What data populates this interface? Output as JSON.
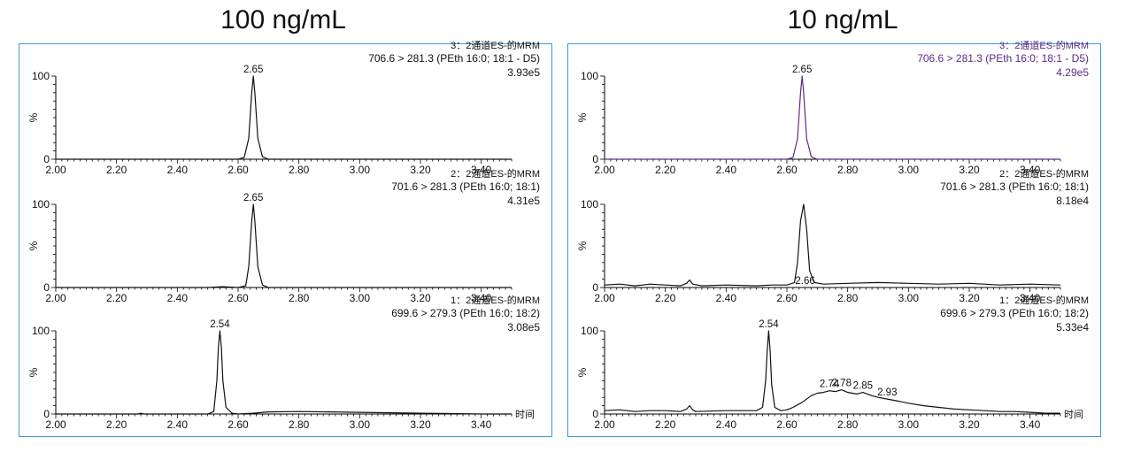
{
  "panels": [
    {
      "title": "100 ng/mL",
      "x_axis_label": "时间",
      "chart_data": [
        {
          "type": "line",
          "channel": "3：2通道ES-的MRM",
          "transition": "706.6 > 281.3 (PEth 16:0; 18:1 - D5)",
          "intensity": "3.93e5",
          "ylabel": "%",
          "xlim": [
            2.0,
            3.5
          ],
          "ylim": [
            0,
            100
          ],
          "x_ticks": [
            "2.00",
            "2.20",
            "2.40",
            "2.60",
            "2.80",
            "3.00",
            "3.20",
            "3.40"
          ],
          "y_ticks": [
            "0",
            "100"
          ],
          "peak_labels": [
            {
              "x": 2.65,
              "label": "2.65"
            }
          ],
          "color": "#111111",
          "series": [
            {
              "x": [
                2.0,
                2.6,
                2.62,
                2.635,
                2.645,
                2.65,
                2.655,
                2.665,
                2.68,
                2.7,
                3.5
              ],
              "y": [
                0,
                0,
                2,
                25,
                80,
                100,
                80,
                25,
                3,
                0,
                0
              ]
            }
          ]
        },
        {
          "type": "line",
          "channel": "2：2通道ES-的MRM",
          "transition": "701.6 > 281.3 (PEth 16:0; 18:1)",
          "intensity": "4.31e5",
          "ylabel": "%",
          "xlim": [
            2.0,
            3.5
          ],
          "ylim": [
            0,
            100
          ],
          "x_ticks": [
            "2.00",
            "2.20",
            "2.40",
            "2.60",
            "2.80",
            "3.00",
            "3.20",
            "3.40"
          ],
          "y_ticks": [
            "0",
            "100"
          ],
          "peak_labels": [
            {
              "x": 2.65,
              "label": "2.65"
            }
          ],
          "color": "#111111",
          "series": [
            {
              "x": [
                2.0,
                2.5,
                2.55,
                2.6,
                2.625,
                2.635,
                2.645,
                2.65,
                2.655,
                2.665,
                2.68,
                2.7,
                3.5
              ],
              "y": [
                0,
                0,
                1,
                0,
                2,
                25,
                80,
                100,
                80,
                25,
                3,
                0,
                0
              ]
            }
          ]
        },
        {
          "type": "line",
          "channel": "1：2通道ES-的MRM",
          "transition": "699.6 > 279.3 (PEth 16:0; 18:2)",
          "intensity": "3.08e5",
          "ylabel": "%",
          "xlim": [
            2.0,
            3.5
          ],
          "ylim": [
            0,
            100
          ],
          "x_ticks": [
            "2.00",
            "2.20",
            "2.40",
            "2.60",
            "2.80",
            "3.00",
            "3.20",
            "3.40"
          ],
          "y_ticks": [
            "0",
            "100"
          ],
          "peak_labels": [
            {
              "x": 2.54,
              "label": "2.54"
            }
          ],
          "color": "#111111",
          "series": [
            {
              "x": [
                2.0,
                2.27,
                2.28,
                2.29,
                2.5,
                2.52,
                2.53,
                2.535,
                2.54,
                2.545,
                2.55,
                2.56,
                2.58,
                2.6,
                2.65,
                2.7,
                2.8,
                2.9,
                3.0,
                3.1,
                3.2,
                3.3,
                3.4,
                3.5
              ],
              "y": [
                0,
                0,
                1,
                0,
                0,
                3,
                40,
                80,
                100,
                80,
                40,
                8,
                1,
                0,
                1,
                2.5,
                3,
                2.5,
                2,
                1.5,
                1,
                0.5,
                0,
                0
              ]
            }
          ]
        }
      ]
    },
    {
      "title": "10 ng/mL",
      "x_axis_label": "时间",
      "chart_data": [
        {
          "type": "line",
          "channel": "3：2通道ES-的MRM",
          "transition": "706.6 > 281.3 (PEth 16:0; 18:1 - D5)",
          "intensity": "4.29e5",
          "ylabel": "%",
          "xlim": [
            2.0,
            3.5
          ],
          "ylim": [
            0,
            100
          ],
          "x_ticks": [
            "2.00",
            "2.20",
            "2.40",
            "2.60",
            "2.80",
            "3.00",
            "3.20",
            "3.40"
          ],
          "y_ticks": [
            "0",
            "100"
          ],
          "peak_labels": [
            {
              "x": 2.65,
              "label": "2.65"
            }
          ],
          "color": "#5b2c83",
          "series": [
            {
              "x": [
                2.0,
                2.6,
                2.62,
                2.635,
                2.645,
                2.65,
                2.655,
                2.665,
                2.68,
                2.7,
                3.5
              ],
              "y": [
                0,
                0,
                2,
                25,
                80,
                100,
                80,
                25,
                3,
                0,
                0
              ]
            }
          ]
        },
        {
          "type": "line",
          "channel": "2：2通道ES-的MRM",
          "transition": "701.6 > 281.3 (PEth 16:0; 18:1)",
          "intensity": "8.18e4",
          "ylabel": "%",
          "xlim": [
            2.0,
            3.5
          ],
          "ylim": [
            0,
            100
          ],
          "x_ticks": [
            "2.00",
            "2.20",
            "2.40",
            "2.60",
            "2.80",
            "3.00",
            "3.20",
            "3.40"
          ],
          "y_ticks": [
            "0",
            "100"
          ],
          "peak_labels": [
            {
              "x": 2.66,
              "label": "2.66"
            }
          ],
          "color": "#111111",
          "series": [
            {
              "x": [
                2.0,
                2.05,
                2.1,
                2.15,
                2.2,
                2.25,
                2.27,
                2.28,
                2.29,
                2.32,
                2.4,
                2.5,
                2.55,
                2.6,
                2.625,
                2.635,
                2.645,
                2.655,
                2.665,
                2.675,
                2.69,
                2.72,
                2.8,
                2.9,
                3.0,
                3.1,
                3.2,
                3.3,
                3.4,
                3.5
              ],
              "y": [
                3,
                4,
                2,
                4,
                3,
                2,
                5,
                9,
                4,
                2,
                3,
                2,
                3,
                3,
                6,
                30,
                80,
                100,
                70,
                20,
                6,
                4,
                5,
                6,
                5,
                4,
                5,
                3,
                4,
                3
              ]
            }
          ]
        },
        {
          "type": "line",
          "channel": "1：2通道ES-的MRM",
          "transition": "699.6 > 279.3 (PEth 16:0; 18:2)",
          "intensity": "5.33e4",
          "ylabel": "%",
          "xlim": [
            2.0,
            3.5
          ],
          "ylim": [
            0,
            100
          ],
          "x_ticks": [
            "2.00",
            "2.20",
            "2.40",
            "2.60",
            "2.80",
            "3.00",
            "3.20",
            "3.40"
          ],
          "y_ticks": [
            "0",
            "100"
          ],
          "peak_labels": [
            {
              "x": 2.54,
              "label": "2.54"
            },
            {
              "x": 2.74,
              "label": "2.74"
            },
            {
              "x": 2.78,
              "label": "2.78"
            },
            {
              "x": 2.85,
              "label": "2.85"
            },
            {
              "x": 2.93,
              "label": "2.93"
            }
          ],
          "color": "#111111",
          "series": [
            {
              "x": [
                2.0,
                2.05,
                2.1,
                2.15,
                2.2,
                2.25,
                2.27,
                2.28,
                2.29,
                2.3,
                2.4,
                2.5,
                2.52,
                2.53,
                2.535,
                2.54,
                2.545,
                2.55,
                2.56,
                2.58,
                2.6,
                2.62,
                2.65,
                2.68,
                2.7,
                2.72,
                2.74,
                2.76,
                2.78,
                2.8,
                2.83,
                2.85,
                2.88,
                2.9,
                2.93,
                2.96,
                3.0,
                3.05,
                3.1,
                3.15,
                3.2,
                3.25,
                3.3,
                3.35,
                3.4,
                3.45,
                3.5
              ],
              "y": [
                4,
                5,
                3,
                4,
                4,
                3,
                6,
                10,
                5,
                3,
                4,
                4,
                8,
                40,
                75,
                100,
                75,
                35,
                8,
                4,
                5,
                8,
                14,
                22,
                25,
                26,
                28,
                27,
                29,
                26,
                24,
                26,
                22,
                20,
                18,
                16,
                13,
                10,
                8,
                6,
                5,
                4,
                3,
                3,
                2,
                1,
                1
              ]
            }
          ]
        }
      ]
    }
  ]
}
